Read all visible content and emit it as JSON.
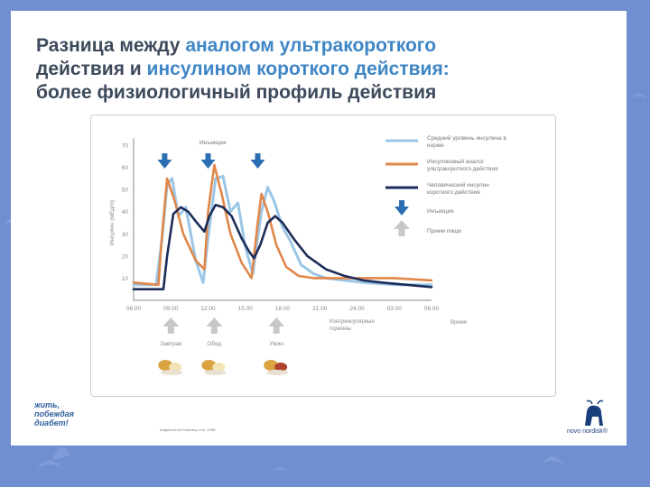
{
  "slide": {
    "title_part1": "Разница между ",
    "title_part2": "аналогом ультракороткого",
    "title_part3": "действия и ",
    "title_part4": "инсулином короткого действия:",
    "title_part5": "более физиологичный профиль действия",
    "brand_left": [
      "жить,",
      "побеждая",
      "диабет!"
    ],
    "footnote": "Adapted from Polonsky et al. 1988.",
    "brand_right": "novo nordisk®"
  },
  "chart_data": {
    "type": "line",
    "ylabel": "Инсулин (мЕд/л)",
    "xlabel": "Время",
    "x_ticks": [
      "06.00",
      "09.00",
      "12.00",
      "15.00",
      "18.00",
      "21.00",
      "24.00",
      "03.00",
      "06.00"
    ],
    "y_ticks": [
      "10",
      "20",
      "30",
      "40",
      "50",
      "60",
      "70"
    ],
    "ylim": [
      0,
      70
    ],
    "xlim_hours": [
      0,
      24
    ],
    "counterregulatory_label": "Контринсулярные гормоны",
    "injection_top_label": "Инъекция",
    "meal_labels": [
      "Завтрак",
      "Обед",
      "Ужин"
    ],
    "meal_x_hours": [
      3,
      6.5,
      11.5
    ],
    "injection_x_hours": [
      2.5,
      6,
      10
    ],
    "legend": [
      {
        "label": "Средний уровень инсулина в норме",
        "color": "#9cc6e6"
      },
      {
        "label": "Инсулиновый аналог ультракороткого действия",
        "color": "#e0874a"
      },
      {
        "label": "Человеческий инсулин короткого действия",
        "color": "#1d2d5a"
      },
      {
        "label": "Инъекция",
        "color": "#2b6fb2"
      },
      {
        "label": "Прием пищи",
        "color": "#c8c8c8"
      }
    ],
    "series": [
      {
        "name": "Средний уровень инсулина в норме",
        "color": "#9cc6e6",
        "x": [
          0,
          1.8,
          2.3,
          2.7,
          3.1,
          3.6,
          4.2,
          5.0,
          5.6,
          6.0,
          6.6,
          7.2,
          7.8,
          8.4,
          9.0,
          9.6,
          10.3,
          10.8,
          11.3,
          12.0,
          12.6,
          13.5,
          14.5,
          15.5,
          17.0,
          18.5,
          21.0,
          24.0
        ],
        "y": [
          7,
          7,
          28,
          52,
          55,
          38,
          42,
          18,
          8,
          28,
          55,
          56,
          40,
          44,
          24,
          12,
          40,
          51,
          45,
          33,
          27,
          16,
          12,
          10,
          9,
          8,
          7,
          7
        ]
      },
      {
        "name": "Инсулиновый аналог ультракороткого действия",
        "color": "#e0874a",
        "x": [
          0,
          2.0,
          2.3,
          2.7,
          3.3,
          4.0,
          5.0,
          5.7,
          6.0,
          6.5,
          7.1,
          7.8,
          8.7,
          9.5,
          10.0,
          10.3,
          10.8,
          11.5,
          12.3,
          13.3,
          14.5,
          16.0,
          18.0,
          21.0,
          24.0
        ],
        "y": [
          8,
          7,
          30,
          55,
          45,
          30,
          18,
          14,
          40,
          61,
          48,
          30,
          17,
          10,
          35,
          48,
          40,
          25,
          15,
          11,
          10,
          10,
          10,
          10,
          9
        ]
      },
      {
        "name": "Человеческий инсулин короткого действия",
        "color": "#1d2d5a",
        "x": [
          0,
          2.4,
          2.7,
          3.2,
          3.8,
          4.4,
          5.1,
          5.7,
          6.1,
          6.6,
          7.2,
          7.9,
          8.7,
          9.3,
          9.7,
          10.2,
          10.8,
          11.4,
          12.0,
          13.0,
          14.0,
          15.5,
          17.0,
          18.5,
          20.0,
          22.0,
          24.0
        ],
        "y": [
          5,
          5,
          20,
          39,
          42,
          40,
          35,
          31,
          38,
          43,
          42,
          38,
          28,
          22,
          19,
          25,
          35,
          38,
          35,
          27,
          20,
          14,
          11,
          9,
          8,
          7,
          6
        ]
      }
    ]
  }
}
